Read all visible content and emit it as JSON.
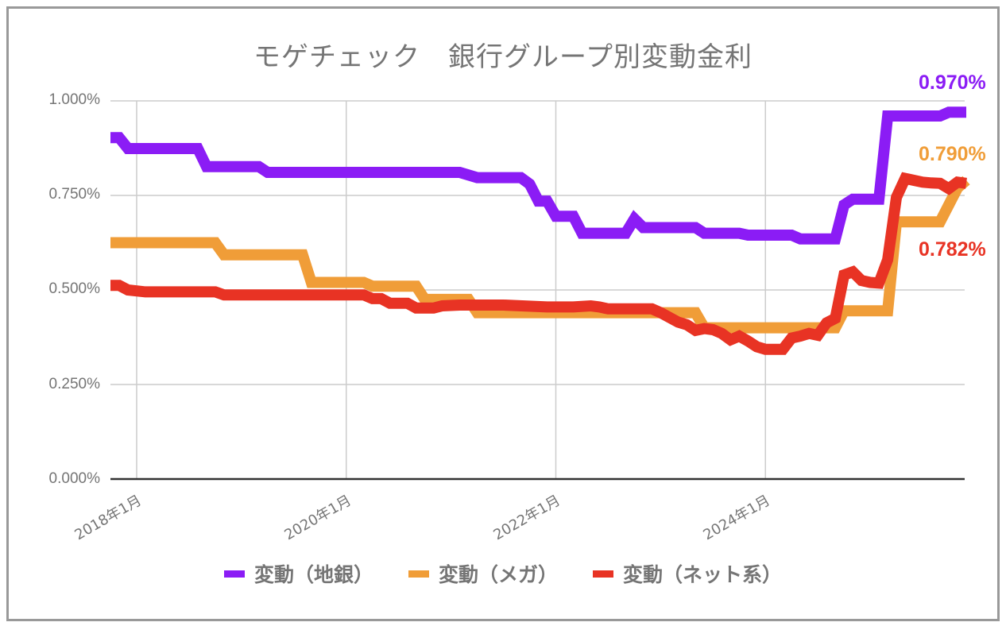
{
  "chart_data": {
    "type": "line",
    "title": "モゲチェック　銀行グループ別変動金利",
    "xlabel": "",
    "ylabel": "",
    "ylim": [
      0,
      1.0
    ],
    "yticks": [
      "0.000%",
      "0.250%",
      "0.500%",
      "0.750%",
      "1.000%"
    ],
    "xticks": [
      "2018年1月",
      "2020年1月",
      "2022年1月",
      "2024年1月"
    ],
    "grid": true,
    "legend_position": "bottom",
    "x_start": "2017-10",
    "x_end": "2025-12",
    "x_step": "month",
    "series": [
      {
        "name": "変動（地銀）",
        "color": "#8B1CF5",
        "end_label": "0.970%",
        "breakpoints": [
          [
            0,
            0.903
          ],
          [
            1,
            0.903
          ],
          [
            2,
            0.874
          ],
          [
            10,
            0.874
          ],
          [
            11,
            0.826
          ],
          [
            17,
            0.826
          ],
          [
            18,
            0.811
          ],
          [
            40,
            0.811
          ],
          [
            42,
            0.797
          ],
          [
            47,
            0.797
          ],
          [
            48,
            0.78
          ],
          [
            49,
            0.735
          ],
          [
            50,
            0.735
          ],
          [
            51,
            0.695
          ],
          [
            53,
            0.695
          ],
          [
            54,
            0.65
          ],
          [
            59,
            0.65
          ],
          [
            60,
            0.688
          ],
          [
            61,
            0.665
          ],
          [
            67,
            0.665
          ],
          [
            68,
            0.65
          ],
          [
            72,
            0.65
          ],
          [
            73,
            0.645
          ],
          [
            78,
            0.645
          ],
          [
            79,
            0.635
          ],
          [
            83,
            0.635
          ],
          [
            84,
            0.725
          ],
          [
            85,
            0.74
          ],
          [
            88,
            0.74
          ],
          [
            89,
            0.96
          ],
          [
            95,
            0.96
          ],
          [
            96,
            0.97
          ],
          [
            98,
            0.97
          ]
        ]
      },
      {
        "name": "変動（メガ）",
        "color": "#F09D38",
        "end_label": "0.790%",
        "breakpoints": [
          [
            0,
            0.625
          ],
          [
            12,
            0.625
          ],
          [
            13,
            0.593
          ],
          [
            22,
            0.593
          ],
          [
            23,
            0.52
          ],
          [
            29,
            0.52
          ],
          [
            30,
            0.51
          ],
          [
            35,
            0.51
          ],
          [
            36,
            0.475
          ],
          [
            41,
            0.475
          ],
          [
            42,
            0.44
          ],
          [
            67,
            0.44
          ],
          [
            68,
            0.4
          ],
          [
            83,
            0.4
          ],
          [
            84,
            0.445
          ],
          [
            89,
            0.445
          ],
          [
            90,
            0.68
          ],
          [
            95,
            0.68
          ],
          [
            97,
            0.77
          ],
          [
            98,
            0.79
          ]
        ]
      },
      {
        "name": "変動（ネット系）",
        "color": "#E83324",
        "end_label": "0.782%",
        "breakpoints": [
          [
            0,
            0.512
          ],
          [
            1,
            0.512
          ],
          [
            2,
            0.5
          ],
          [
            4,
            0.495
          ],
          [
            12,
            0.495
          ],
          [
            13,
            0.487
          ],
          [
            29,
            0.487
          ],
          [
            30,
            0.477
          ],
          [
            31,
            0.477
          ],
          [
            32,
            0.465
          ],
          [
            34,
            0.465
          ],
          [
            35,
            0.452
          ],
          [
            37,
            0.452
          ],
          [
            38,
            0.458
          ],
          [
            40,
            0.46
          ],
          [
            45,
            0.46
          ],
          [
            50,
            0.455
          ],
          [
            53,
            0.455
          ],
          [
            55,
            0.458
          ],
          [
            56,
            0.455
          ],
          [
            57,
            0.45
          ],
          [
            62,
            0.45
          ],
          [
            63,
            0.44
          ],
          [
            65,
            0.415
          ],
          [
            66,
            0.408
          ],
          [
            67,
            0.393
          ],
          [
            68,
            0.398
          ],
          [
            69,
            0.395
          ],
          [
            70,
            0.385
          ],
          [
            71,
            0.368
          ],
          [
            72,
            0.378
          ],
          [
            73,
            0.365
          ],
          [
            74,
            0.35
          ],
          [
            75,
            0.343
          ],
          [
            77,
            0.343
          ],
          [
            78,
            0.373
          ],
          [
            79,
            0.378
          ],
          [
            80,
            0.385
          ],
          [
            81,
            0.38
          ],
          [
            82,
            0.413
          ],
          [
            83,
            0.425
          ],
          [
            84,
            0.54
          ],
          [
            85,
            0.548
          ],
          [
            86,
            0.525
          ],
          [
            87,
            0.52
          ],
          [
            88,
            0.518
          ],
          [
            89,
            0.58
          ],
          [
            90,
            0.745
          ],
          [
            91,
            0.795
          ],
          [
            92,
            0.79
          ],
          [
            93,
            0.785
          ],
          [
            94,
            0.783
          ],
          [
            95,
            0.782
          ],
          [
            96,
            0.768
          ],
          [
            97,
            0.785
          ],
          [
            98,
            0.782
          ]
        ]
      }
    ]
  },
  "legend": {
    "items": [
      {
        "label": "変動（地銀）",
        "color": "#8B1CF5"
      },
      {
        "label": "変動（メガ）",
        "color": "#F09D38"
      },
      {
        "label": "変動（ネット系）",
        "color": "#E83324"
      }
    ]
  }
}
